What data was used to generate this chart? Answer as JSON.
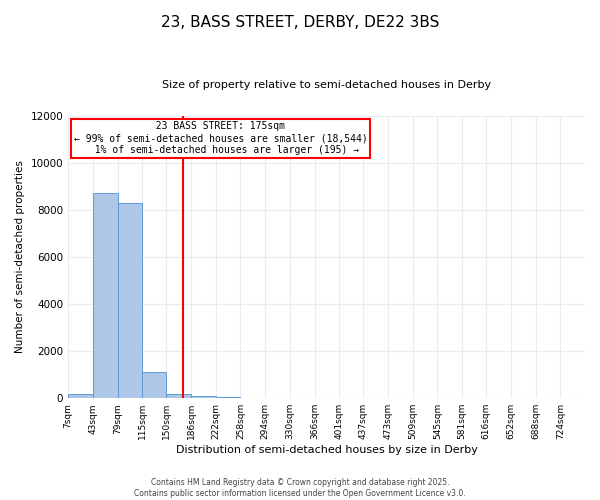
{
  "title": "23, BASS STREET, DERBY, DE22 3BS",
  "subtitle": "Size of property relative to semi-detached houses in Derby",
  "xlabel": "Distribution of semi-detached houses by size in Derby",
  "ylabel": "Number of semi-detached properties",
  "bin_edges": [
    7,
    43,
    79,
    115,
    150,
    186,
    222,
    258,
    294,
    330,
    366,
    401,
    437,
    473,
    509,
    545,
    581,
    616,
    652,
    688,
    724
  ],
  "bar_heights": [
    200,
    8700,
    8300,
    1100,
    200,
    100,
    50,
    10,
    5,
    3,
    2,
    1,
    1,
    0,
    0,
    0,
    0,
    0,
    0,
    0
  ],
  "bar_color": "#aec6e8",
  "bar_edge_color": "#5b9bd5",
  "property_size": 175,
  "property_label": "23 BASS STREET: 175sqm",
  "pct_smaller": 99,
  "n_smaller": 18544,
  "pct_larger": 1,
  "n_larger": 195,
  "vline_color": "red",
  "annotation_box_color": "red",
  "ylim": [
    0,
    12000
  ],
  "yticks": [
    0,
    2000,
    4000,
    6000,
    8000,
    10000,
    12000
  ],
  "footer_line1": "Contains HM Land Registry data © Crown copyright and database right 2025.",
  "footer_line2": "Contains public sector information licensed under the Open Government Licence v3.0.",
  "bg_color": "#ffffff",
  "plot_bg_color": "#ffffff",
  "grid_color": "#e8ecf5"
}
